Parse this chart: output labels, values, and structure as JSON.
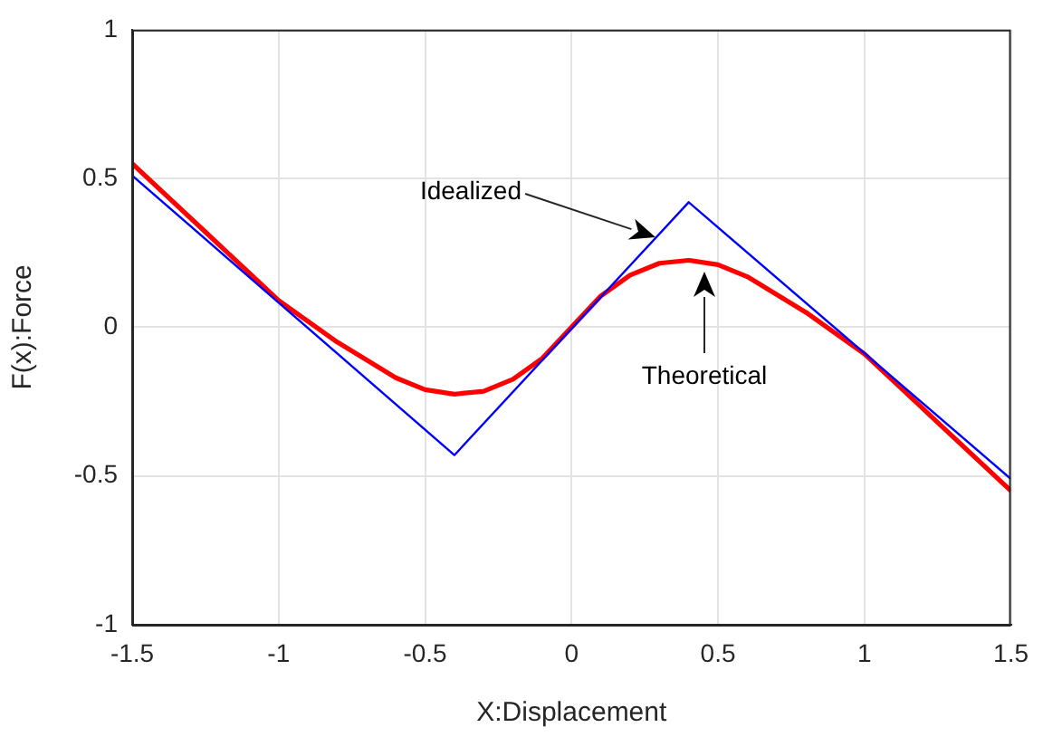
{
  "chart_data": {
    "type": "line",
    "xlabel": "X:Displacement",
    "ylabel": "F(x):Force",
    "xlim": [
      -1.5,
      1.5
    ],
    "xticks": [
      -1.5,
      -1,
      -0.5,
      0,
      0.5,
      1,
      1.5
    ],
    "ylim": [
      -1,
      1
    ],
    "yticks": [
      -1,
      -0.5,
      0,
      0.5,
      1
    ],
    "grid": true,
    "marker": "none",
    "line_style": "solid",
    "series": [
      {
        "color": "#0000ff",
        "x": [
          -1.5,
          -0.4,
          0.4,
          1.5
        ],
        "values": [
          0.51,
          -0.43,
          0.42,
          -0.51
        ]
      },
      {
        "color": "#ff0000",
        "x": [
          -1.5,
          -1.25,
          -1,
          -0.9,
          -0.8,
          -0.7,
          -0.6,
          -0.5,
          -0.4,
          -0.3,
          -0.2,
          -0.1,
          0,
          0.1,
          0.2,
          0.3,
          0.4,
          0.5,
          0.6,
          0.7,
          0.8,
          0.9,
          1,
          1.25,
          1.5
        ],
        "values": [
          0.55,
          0.32,
          0.09,
          0.02,
          -0.05,
          -0.11,
          -0.17,
          -0.21,
          -0.225,
          -0.215,
          -0.175,
          -0.105,
          0,
          0.105,
          0.175,
          0.215,
          0.225,
          0.21,
          0.17,
          0.11,
          0.05,
          -0.02,
          -0.09,
          -0.32,
          -0.55
        ]
      }
    ],
    "annotations": [
      "Idealized",
      "Theoretical"
    ]
  }
}
